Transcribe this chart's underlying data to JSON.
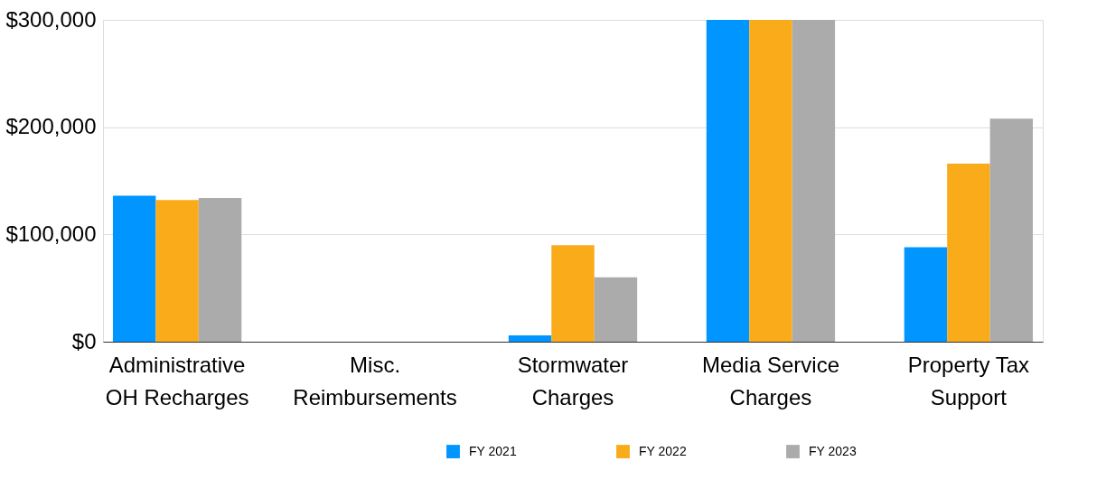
{
  "chart_data": {
    "type": "bar",
    "categories": [
      "Administrative OH Recharges",
      "Misc. Reimbursements",
      "Stormwater Charges",
      "Media Service Charges",
      "Property Tax Support"
    ],
    "series": [
      {
        "name": "FY 2021",
        "color": "#0095ff",
        "values": [
          136000,
          0,
          6000,
          300000,
          88000
        ]
      },
      {
        "name": "FY 2022",
        "color": "#f9ab1a",
        "values": [
          132000,
          0,
          90000,
          300000,
          166000
        ]
      },
      {
        "name": "FY 2023",
        "color": "#ababab",
        "values": [
          134000,
          0,
          60000,
          300000,
          208000
        ]
      }
    ],
    "ylim": [
      0,
      300000
    ],
    "yticks": [
      {
        "value": 0,
        "label": "$0"
      },
      {
        "value": 100000,
        "label": "$100,000"
      },
      {
        "value": 200000,
        "label": "$200,000"
      },
      {
        "value": 300000,
        "label": "$300,000"
      }
    ],
    "grid": "y",
    "legend": "bottom"
  }
}
